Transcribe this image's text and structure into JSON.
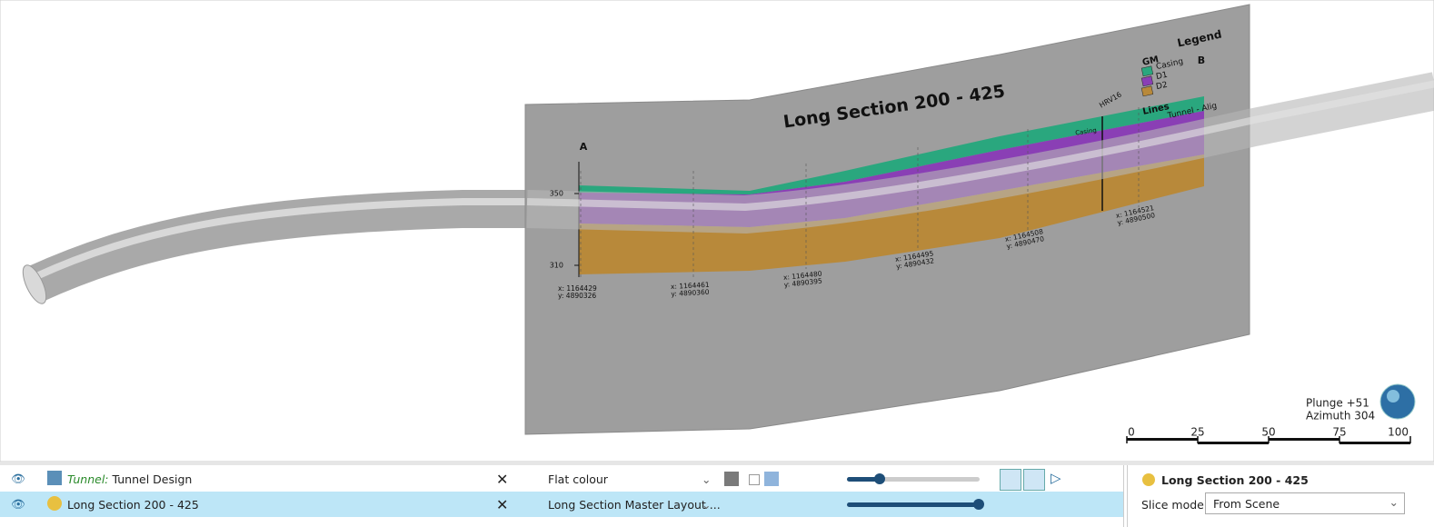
{
  "viewport": {
    "section": {
      "title": "Long Section 200 - 425",
      "start_label": "A",
      "end_label": "B",
      "elevations": [
        350,
        310
      ],
      "coordinates": [
        {
          "x": "x: 1164429",
          "y": "y: 4890326"
        },
        {
          "x": "x: 1164461",
          "y": "y: 4890360"
        },
        {
          "x": "x: 1164480",
          "y": "y: 4890395"
        },
        {
          "x": "x: 1164495",
          "y": "y: 4890432"
        },
        {
          "x": "x: 1164508",
          "y": "y: 4890470"
        },
        {
          "x": "x: 1164521",
          "y": "y: 4890500"
        }
      ],
      "drillhole": "HRV16",
      "drillhole_unit": "Casing",
      "legend": {
        "title": "Legend",
        "group": "GM",
        "items": [
          "Casing",
          "D1",
          "D2"
        ],
        "lines_title": "Lines",
        "lines_items": [
          "Tunnel - Alig"
        ]
      }
    },
    "camera": {
      "plunge": "Plunge +51",
      "azimuth": "Azimuth 304"
    },
    "scale_bar": {
      "ticks": [
        0,
        25,
        50,
        75,
        100
      ]
    }
  },
  "layers": [
    {
      "prefix": "Tunnel:",
      "name": "Tunnel Design",
      "style": "Flat colour"
    },
    {
      "name": "Long Section 200 - 425",
      "style": "Long Section Master Layout ..."
    }
  ],
  "properties": {
    "title": "Long Section 200 - 425",
    "slice_mode_label": "Slice mode:",
    "slice_mode": "From Scene"
  }
}
